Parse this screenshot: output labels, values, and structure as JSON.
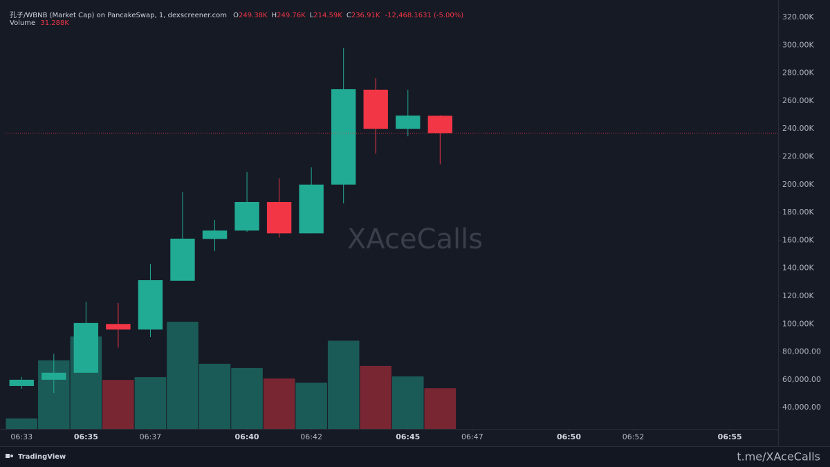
{
  "header": {
    "symbol": "孔子/WBNB (Market Cap) on PancakeSwap, 1, dexscreener.com",
    "ohlc": [
      {
        "label": "O",
        "value": "249.38K"
      },
      {
        "label": "H",
        "value": "249.76K"
      },
      {
        "label": "L",
        "value": "214.59K"
      },
      {
        "label": "C",
        "value": "236.91K"
      }
    ],
    "change": "-12,468.1631 (-5.00%)",
    "volume_label": "Volume",
    "volume_value": "31.288K"
  },
  "chart_data": {
    "type": "candlestick",
    "x": [
      "06:33",
      "06:34",
      "06:35",
      "06:36",
      "06:37",
      "06:38",
      "06:39",
      "06:40",
      "06:41",
      "06:42",
      "06:43",
      "06:44",
      "06:45",
      "06:46"
    ],
    "open": [
      55500,
      60000,
      65000,
      100000,
      96000,
      131000,
      161000,
      167000,
      187500,
      165000,
      200000,
      268000,
      240000,
      249380
    ],
    "high": [
      62000,
      78500,
      116000,
      115000,
      143000,
      194500,
      174600,
      209000,
      204500,
      212300,
      298000,
      276300,
      268000,
      249760
    ],
    "low": [
      53500,
      50500,
      65000,
      83000,
      90700,
      131000,
      152300,
      166000,
      162000,
      165000,
      186500,
      222200,
      234600,
      214590
    ],
    "close": [
      60000,
      65000,
      100700,
      96000,
      131400,
      161200,
      167000,
      187500,
      165000,
      200000,
      268400,
      240000,
      249500,
      236910
    ],
    "volume": [
      8100,
      52800,
      71100,
      37700,
      39900,
      82500,
      50100,
      46900,
      38800,
      35600,
      67900,
      48500,
      40400,
      31288
    ],
    "up_color": "#22ab94",
    "down_color": "#f23645",
    "ylim": [
      24700,
      332400
    ],
    "yticks": [
      {
        "value": 320000,
        "label": "320.00K"
      },
      {
        "value": 300000,
        "label": "300.00K"
      },
      {
        "value": 280000,
        "label": "280.00K"
      },
      {
        "value": 260000,
        "label": "260.00K"
      },
      {
        "value": 240000,
        "label": "240.00K"
      },
      {
        "value": 220000,
        "label": "220.00K"
      },
      {
        "value": 200000,
        "label": "200.00K"
      },
      {
        "value": 180000,
        "label": "180.00K"
      },
      {
        "value": 160000,
        "label": "160.00K"
      },
      {
        "value": 140000,
        "label": "140.00K"
      },
      {
        "value": 120000,
        "label": "120.00K"
      },
      {
        "value": 100000,
        "label": "100.00K"
      },
      {
        "value": 80000,
        "label": "80,000.00"
      },
      {
        "value": 60000,
        "label": "60,000.00"
      },
      {
        "value": 40000,
        "label": "40,000.00"
      }
    ],
    "volume_lim": [
      0,
      330000
    ],
    "xlim": [
      "06:32:30",
      "06:56:30"
    ],
    "xticks": [
      "06:33",
      "06:35",
      "06:37",
      "06:40",
      "06:42",
      "06:45",
      "06:47",
      "06:50",
      "06:52",
      "06:55"
    ],
    "last_price": 236910,
    "watermark": "XAceCalls"
  },
  "footer": {
    "brand": "TradingView",
    "link": "t.me/XAceCalls"
  }
}
